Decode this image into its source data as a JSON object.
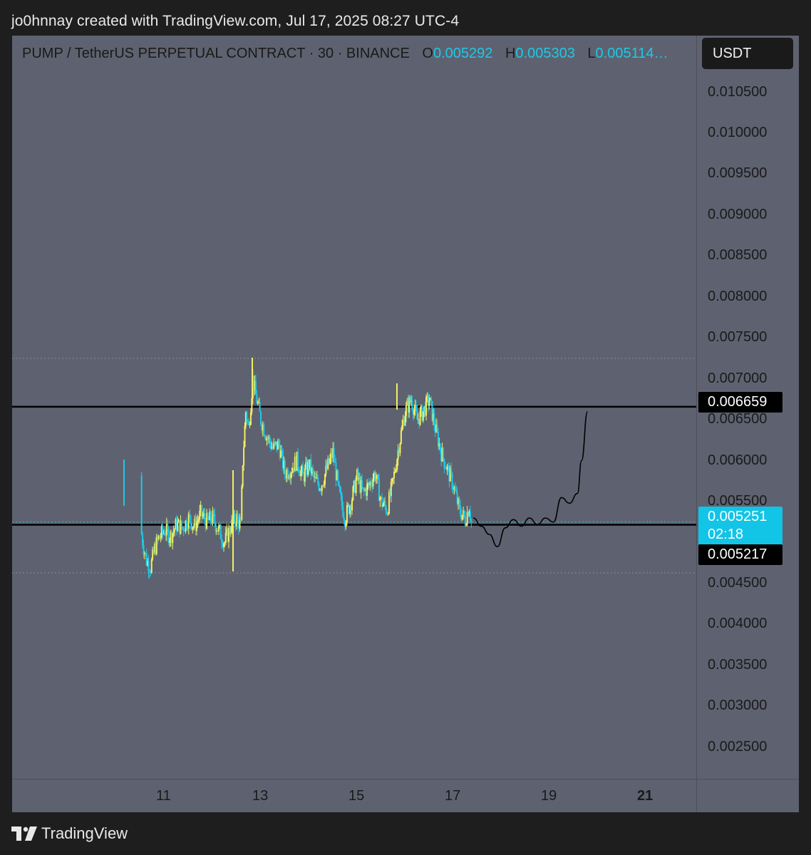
{
  "header": {
    "created_by": "jo0hnnay created with TradingView.com, Jul 17, 2025 08:27 UTC-4"
  },
  "legend": {
    "symbol": "PUMP / TetherUS PERPETUAL CONTRACT · 30 · BINANCE",
    "open_label": "O",
    "open": "0.005292",
    "high_label": "H",
    "high": "0.005303",
    "low_label": "L",
    "low": "0.005114…"
  },
  "unit": "USDT",
  "price_tags": {
    "resistance": "0.006659",
    "last_price": "0.005251",
    "countdown": "02:18",
    "support": "0.005217"
  },
  "footer": {
    "brand": "TradingView",
    "logo_icon": "tradingview-logo-icon"
  },
  "colors": {
    "background": "#5e6270",
    "candle_up": "#f2ee64",
    "candle_down": "#1ec8e6",
    "line": "#000000",
    "accent": "#12c4e6"
  },
  "chart_data": {
    "type": "candlestick",
    "title": "PUMP / TetherUS PERPETUAL CONTRACT · 30 · BINANCE",
    "y_ticks": [
      "0.010500",
      "0.010000",
      "0.009500",
      "0.009000",
      "0.008500",
      "0.008000",
      "0.007500",
      "0.007000",
      "0.006500",
      "0.006000",
      "0.005500",
      "0.004500",
      "0.004000",
      "0.003500",
      "0.003000",
      "0.002500"
    ],
    "x_ticks": [
      {
        "label": "11",
        "bold": false
      },
      {
        "label": "13",
        "bold": false
      },
      {
        "label": "15",
        "bold": false
      },
      {
        "label": "17",
        "bold": false
      },
      {
        "label": "19",
        "bold": false
      },
      {
        "label": "21",
        "bold": true
      }
    ],
    "ylim": [
      0.0019,
      0.0109
    ],
    "x_range": [
      "2025-07-10",
      "2025-07-21"
    ],
    "horizontal_lines": [
      {
        "value": 0.006659,
        "style": "solid"
      },
      {
        "value": 0.005217,
        "style": "solid"
      },
      {
        "value": 0.00725,
        "style": "dotted"
      },
      {
        "value": 0.00463,
        "style": "dotted"
      },
      {
        "value": 0.005251,
        "style": "dotted-cyan"
      }
    ],
    "price_path": [
      [
        "2025-07-10 12:00",
        0.00582
      ],
      [
        "2025-07-10 12:30",
        0.0051
      ],
      [
        "2025-07-10 13:30",
        0.00495
      ],
      [
        "2025-07-10 15:00",
        0.00478
      ],
      [
        "2025-07-10 17:00",
        0.0047
      ],
      [
        "2025-07-10 19:00",
        0.00492
      ],
      [
        "2025-07-10 21:00",
        0.00505
      ],
      [
        "2025-07-11 00:00",
        0.00515
      ],
      [
        "2025-07-11 03:00",
        0.00508
      ],
      [
        "2025-07-11 06:00",
        0.00522
      ],
      [
        "2025-07-11 09:00",
        0.00518
      ],
      [
        "2025-07-11 12:00",
        0.0053
      ],
      [
        "2025-07-11 15:00",
        0.0052
      ],
      [
        "2025-07-11 18:00",
        0.00535
      ],
      [
        "2025-07-11 21:00",
        0.00525
      ],
      [
        "2025-07-12 00:00",
        0.0053
      ],
      [
        "2025-07-12 03:00",
        0.00515
      ],
      [
        "2025-07-12 06:00",
        0.005
      ],
      [
        "2025-07-12 09:00",
        0.0052
      ],
      [
        "2025-07-12 12:00",
        0.0053
      ],
      [
        "2025-07-12 14:00",
        0.0052
      ],
      [
        "2025-07-12 15:00",
        0.006
      ],
      [
        "2025-07-12 16:30",
        0.0066
      ],
      [
        "2025-07-12 18:00",
        0.0064
      ],
      [
        "2025-07-12 20:00",
        0.007
      ],
      [
        "2025-07-12 21:30",
        0.0068
      ],
      [
        "2025-07-13 00:00",
        0.0065
      ],
      [
        "2025-07-13 03:00",
        0.0063
      ],
      [
        "2025-07-13 06:00",
        0.00615
      ],
      [
        "2025-07-13 09:00",
        0.0062
      ],
      [
        "2025-07-13 12:00",
        0.00585
      ],
      [
        "2025-07-13 15:00",
        0.0059
      ],
      [
        "2025-07-13 18:00",
        0.006
      ],
      [
        "2025-07-13 21:00",
        0.0058
      ],
      [
        "2025-07-14 00:00",
        0.00595
      ],
      [
        "2025-07-14 03:00",
        0.00575
      ],
      [
        "2025-07-14 06:00",
        0.0057
      ],
      [
        "2025-07-14 09:00",
        0.0059
      ],
      [
        "2025-07-14 12:00",
        0.0061
      ],
      [
        "2025-07-14 15:00",
        0.0056
      ],
      [
        "2025-07-14 18:00",
        0.0053
      ],
      [
        "2025-07-14 21:00",
        0.0055
      ],
      [
        "2025-07-15 00:00",
        0.0058
      ],
      [
        "2025-07-15 03:00",
        0.0056
      ],
      [
        "2025-07-15 06:00",
        0.0057
      ],
      [
        "2025-07-15 09:00",
        0.00585
      ],
      [
        "2025-07-15 12:00",
        0.0055
      ],
      [
        "2025-07-15 15:00",
        0.0054
      ],
      [
        "2025-07-15 18:00",
        0.00575
      ],
      [
        "2025-07-15 21:00",
        0.0062
      ],
      [
        "2025-07-16 00:00",
        0.0066
      ],
      [
        "2025-07-16 03:00",
        0.00675
      ],
      [
        "2025-07-16 06:00",
        0.0065
      ],
      [
        "2025-07-16 09:00",
        0.0066
      ],
      [
        "2025-07-16 12:00",
        0.00675
      ],
      [
        "2025-07-16 15:00",
        0.0064
      ],
      [
        "2025-07-16 18:00",
        0.0061
      ],
      [
        "2025-07-16 21:00",
        0.0059
      ],
      [
        "2025-07-17 00:00",
        0.0057
      ],
      [
        "2025-07-17 03:00",
        0.0054
      ],
      [
        "2025-07-17 06:00",
        0.00528
      ],
      [
        "2025-07-17 08:00",
        0.00545
      ],
      [
        "2025-07-17 09:00",
        0.005251
      ]
    ],
    "projection_path": [
      [
        "2025-07-17 10:00",
        0.0053
      ],
      [
        "2025-07-17 14:00",
        0.0052
      ],
      [
        "2025-07-17 18:00",
        0.0051
      ],
      [
        "2025-07-17 22:00",
        0.00495
      ],
      [
        "2025-07-18 02:00",
        0.00518
      ],
      [
        "2025-07-18 06:00",
        0.00528
      ],
      [
        "2025-07-18 10:00",
        0.0052
      ],
      [
        "2025-07-18 14:00",
        0.0053
      ],
      [
        "2025-07-18 18:00",
        0.00522
      ],
      [
        "2025-07-18 22:00",
        0.0053
      ],
      [
        "2025-07-19 02:00",
        0.00525
      ],
      [
        "2025-07-19 06:00",
        0.00555
      ],
      [
        "2025-07-19 10:00",
        0.00548
      ],
      [
        "2025-07-19 14:00",
        0.0056
      ],
      [
        "2025-07-19 16:00",
        0.006
      ],
      [
        "2025-07-19 19:00",
        0.0066
      ]
    ]
  }
}
